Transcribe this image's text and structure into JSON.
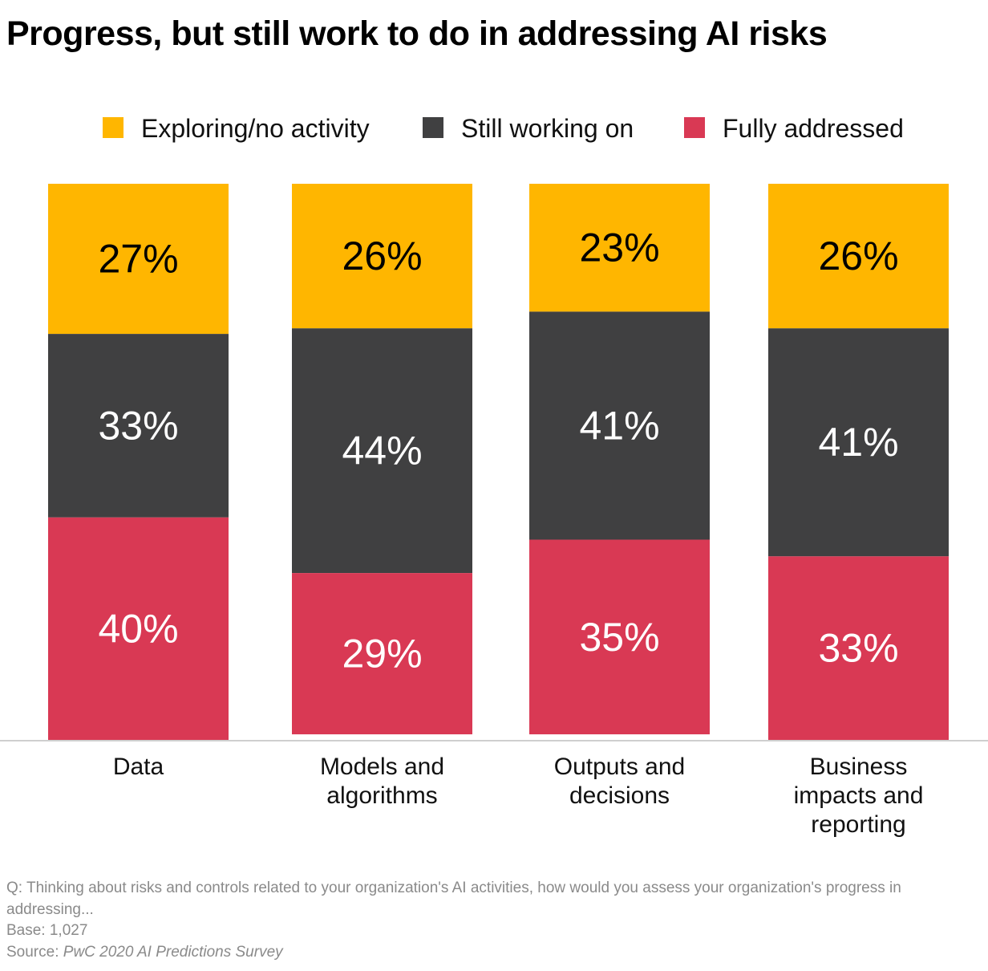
{
  "chart_data": {
    "type": "bar",
    "stacked": true,
    "title": "Progress, but still work to do in addressing AI risks",
    "categories": [
      [
        "Data"
      ],
      [
        "Models and",
        "algorithms"
      ],
      [
        "Outputs and",
        "decisions"
      ],
      [
        "Business",
        "impacts and",
        "reporting"
      ]
    ],
    "series": [
      {
        "name": "Exploring/no activity",
        "color": "#FFB600",
        "label_color": "#000000",
        "values": [
          27,
          26,
          23,
          26
        ]
      },
      {
        "name": "Still working on",
        "color": "#404041",
        "label_color": "#FFFFFF",
        "values": [
          33,
          44,
          41,
          41
        ]
      },
      {
        "name": "Fully addressed",
        "color": "#D93954",
        "label_color": "#FFFFFF",
        "values": [
          40,
          29,
          35,
          33
        ]
      }
    ],
    "value_suffix": "%",
    "ylim": [
      0,
      100
    ],
    "legend_position": "top",
    "grid": false
  },
  "notes": {
    "question": "Q: Thinking about risks and controls related to your organization's AI activities, how would you assess your organization's progress in addressing...",
    "base": "Base: 1,027",
    "source_prefix": "Source:",
    "source_name": "PwC 2020 AI Predictions Survey"
  }
}
